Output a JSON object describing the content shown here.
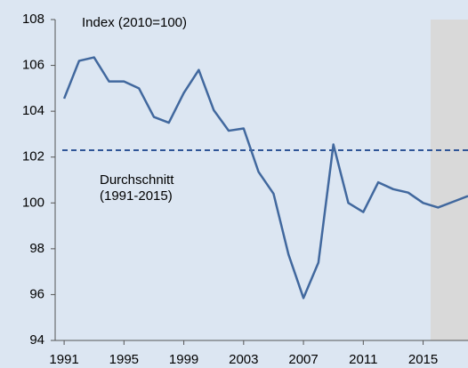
{
  "chart_data": {
    "type": "line",
    "annotations": {
      "index_note": "Index (2010=100)",
      "average_label": [
        "Durchschnitt",
        "(1991-2015)"
      ]
    },
    "x": [
      1991,
      1992,
      1993,
      1994,
      1995,
      1996,
      1997,
      1998,
      1999,
      2000,
      2001,
      2002,
      2003,
      2004,
      2005,
      2006,
      2007,
      2008,
      2009,
      2010,
      2011,
      2012,
      2013,
      2014,
      2015,
      2016,
      2017,
      2018
    ],
    "series": [
      {
        "name": "Index",
        "color": "#41689e",
        "values": [
          104.55,
          106.2,
          106.35,
          105.3,
          105.3,
          105.0,
          103.75,
          103.5,
          104.8,
          105.8,
          104.05,
          103.15,
          103.25,
          101.35,
          100.4,
          97.75,
          95.85,
          97.4,
          102.55,
          100.0,
          99.6,
          100.9,
          100.6,
          100.45,
          100.0,
          99.8,
          100.05,
          100.3
        ]
      }
    ],
    "average": {
      "value": 102.3,
      "color": "#2f5597"
    },
    "shade_x": [
      2015.5,
      2018
    ],
    "shade_color": "#d9d9d9",
    "xlim": [
      1990.4,
      2018
    ],
    "xticks": [
      1991,
      1995,
      1999,
      2003,
      2007,
      2011,
      2015
    ],
    "ylim": [
      94,
      108
    ],
    "yticks": [
      94,
      96,
      98,
      100,
      102,
      104,
      106,
      108
    ],
    "background": "#dce6f2"
  }
}
